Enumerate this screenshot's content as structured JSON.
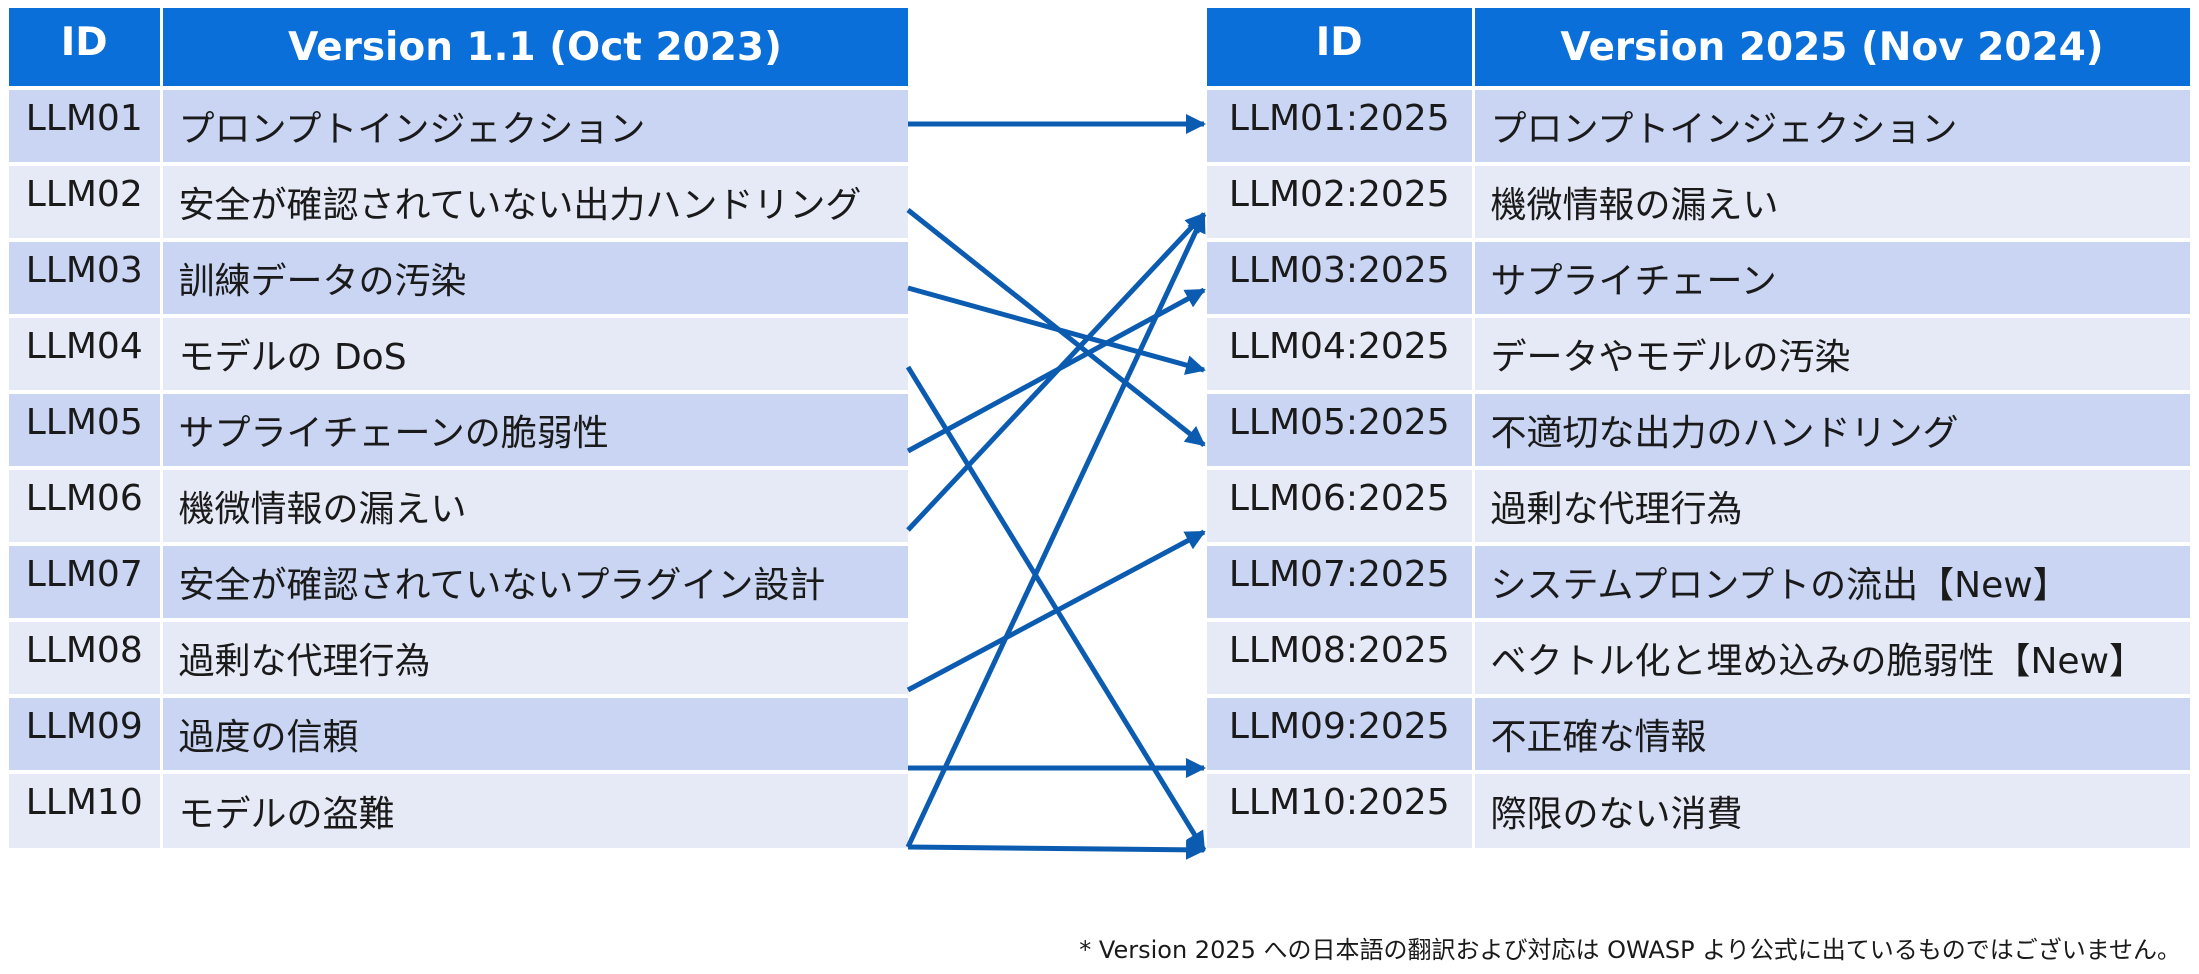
{
  "left": {
    "id_header": "ID",
    "title": "Version 1.1 (Oct 2023)",
    "rows": [
      {
        "id": "LLM01",
        "name": "プロンプトインジェクション"
      },
      {
        "id": "LLM02",
        "name": "安全が確認されていない出力ハンドリング"
      },
      {
        "id": "LLM03",
        "name": "訓練データの汚染"
      },
      {
        "id": "LLM04",
        "name": "モデルの DoS"
      },
      {
        "id": "LLM05",
        "name": "サプライチェーンの脆弱性"
      },
      {
        "id": "LLM06",
        "name": "機微情報の漏えい"
      },
      {
        "id": "LLM07",
        "name": "安全が確認されていないプラグイン設計"
      },
      {
        "id": "LLM08",
        "name": "過剰な代理行為"
      },
      {
        "id": "LLM09",
        "name": "過度の信頼"
      },
      {
        "id": "LLM10",
        "name": "モデルの盗難"
      }
    ]
  },
  "right": {
    "id_header": "ID",
    "title": "Version 2025 (Nov 2024)",
    "rows": [
      {
        "id": "LLM01:2025",
        "name": "プロンプトインジェクション"
      },
      {
        "id": "LLM02:2025",
        "name": "機微情報の漏えい"
      },
      {
        "id": "LLM03:2025",
        "name": "サプライチェーン"
      },
      {
        "id": "LLM04:2025",
        "name": "データやモデルの汚染"
      },
      {
        "id": "LLM05:2025",
        "name": "不適切な出力のハンドリング"
      },
      {
        "id": "LLM06:2025",
        "name": "過剰な代理行為"
      },
      {
        "id": "LLM07:2025",
        "name": "システムプロンプトの流出【New】"
      },
      {
        "id": "LLM08:2025",
        "name": "ベクトル化と埋め込みの脆弱性【New】"
      },
      {
        "id": "LLM09:2025",
        "name": "不正確な情報"
      },
      {
        "id": "LLM10:2025",
        "name": "際限のない消費"
      }
    ]
  },
  "mappings": [
    {
      "from": 0,
      "to": 0
    },
    {
      "from": 1,
      "to": 4
    },
    {
      "from": 2,
      "to": 3
    },
    {
      "from": 3,
      "to": 9
    },
    {
      "from": 4,
      "to": 2
    },
    {
      "from": 5,
      "to": 1
    },
    {
      "from": 7,
      "to": 5
    },
    {
      "from": 8,
      "to": 8
    },
    {
      "from": 9,
      "to": 9
    },
    {
      "from": 9,
      "to": 1
    }
  ],
  "colors": {
    "header_bg": "#0a6fd9",
    "row_odd": "#c9d5f3",
    "row_even": "#e6eaf7",
    "arrow": "#0b5cb0"
  },
  "footnote": "* Version 2025 への日本語の翻訳および対応は OWASP より公式に出ているものではございません。"
}
